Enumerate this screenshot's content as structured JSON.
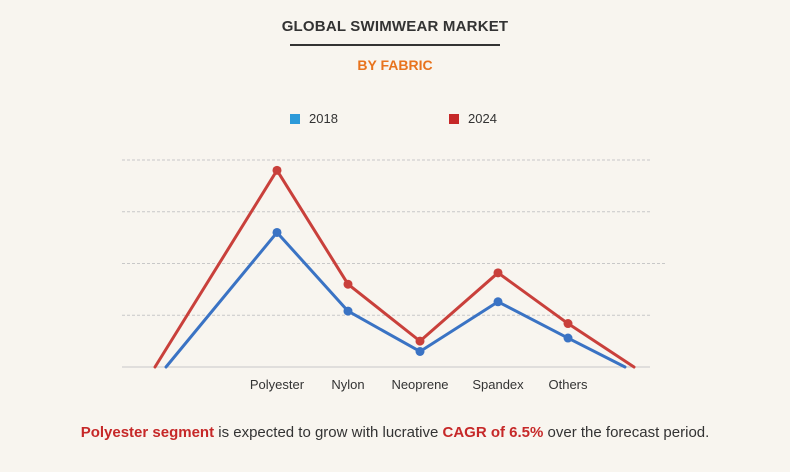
{
  "header": {
    "title": "GLOBAL SWIMWEAR MARKET",
    "subtitle": "BY FABRIC"
  },
  "colors": {
    "title": "#333333",
    "subtitle": "#e8731d",
    "series_2018": "#3a73c4",
    "swatch_2018": "#2d9ad9",
    "series_2024": "#c9403b",
    "swatch_2024": "#c62828",
    "highlight": "#c62828",
    "grid": "#c8c8c8",
    "background": "#f8f5ef"
  },
  "footer": {
    "segment": "Polyester segment",
    "middle": " is expected to grow with lucrative ",
    "cagr": "CAGR of 6.5%",
    "end": " over the forecast period."
  },
  "chart_data": {
    "type": "line",
    "title": "GLOBAL SWIMWEAR MARKET",
    "subtitle": "BY FABRIC",
    "xlabel": "",
    "ylabel": "",
    "categories": [
      "Polyester",
      "Nylon",
      "Neoprene",
      "Spandex",
      "Others"
    ],
    "ylim": [
      0,
      4
    ],
    "grid": true,
    "legend_position": "top",
    "series": [
      {
        "name": "2018",
        "values": [
          2.6,
          1.08,
          0.3,
          1.26,
          0.56
        ]
      },
      {
        "name": "2024",
        "values": [
          3.8,
          1.6,
          0.5,
          1.82,
          0.84
        ]
      }
    ]
  }
}
